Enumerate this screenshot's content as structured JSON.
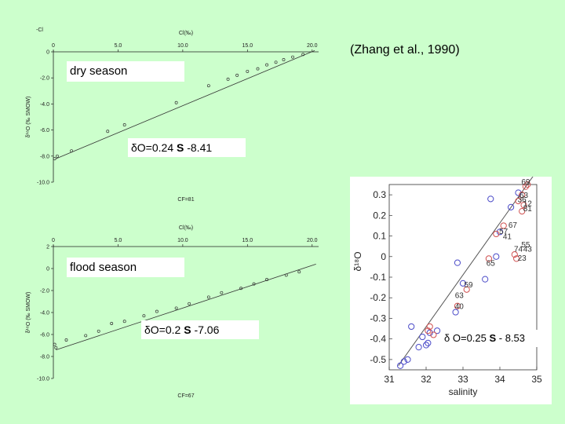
{
  "citation": "(Zhang et al., 1990)",
  "chart_data": [
    {
      "type": "scatter",
      "panel": "dry",
      "title": "",
      "label": "dry season",
      "equation": {
        "delta": "δ",
        "pre": "O=0.24 ",
        "var": "S",
        "post": " -8.41"
      },
      "top_axis_title": "Cl(‰)",
      "corner_label": "-Cl",
      "ylabel": "δ¹⁸O (‰ SMOW)",
      "bottom_note": "CF=81",
      "xticks": [
        "0",
        "5.0",
        "10.0",
        "15.0",
        "20.0"
      ],
      "yticks": [
        "0",
        "-2.0",
        "-4.0",
        "-6.0",
        "-8.0",
        "-10.0"
      ],
      "xlim": [
        0,
        20.5
      ],
      "ylim": [
        -10.0,
        0
      ],
      "points": [
        {
          "x": 0.1,
          "y": -8.2
        },
        {
          "x": 0.3,
          "y": -8.0
        },
        {
          "x": 1.4,
          "y": -7.6
        },
        {
          "x": 4.2,
          "y": -6.1
        },
        {
          "x": 5.5,
          "y": -5.6
        },
        {
          "x": 9.5,
          "y": -3.9
        },
        {
          "x": 12.0,
          "y": -2.6
        },
        {
          "x": 13.5,
          "y": -2.1
        },
        {
          "x": 14.2,
          "y": -1.8
        },
        {
          "x": 15.0,
          "y": -1.5
        },
        {
          "x": 15.8,
          "y": -1.3
        },
        {
          "x": 16.5,
          "y": -1.0
        },
        {
          "x": 17.2,
          "y": -0.8
        },
        {
          "x": 17.8,
          "y": -0.6
        },
        {
          "x": 18.5,
          "y": -0.4
        },
        {
          "x": 19.3,
          "y": -0.2
        }
      ],
      "fit": {
        "x": [
          0.2,
          20.2
        ],
        "y": [
          -8.2,
          0.1
        ]
      }
    },
    {
      "type": "scatter",
      "panel": "flood",
      "title": "",
      "label": "flood season",
      "equation": {
        "delta": "δ",
        "pre": "O=0.2 ",
        "var": "S",
        "post": " -7.06"
      },
      "top_axis_title": "Cl(‰)",
      "corner_label": "",
      "ylabel": "δ¹⁸O (‰ SMOW)",
      "bottom_note": "CF=67",
      "xticks": [
        "0",
        "5.0",
        "10.0",
        "15.0",
        "20.0"
      ],
      "yticks": [
        "2",
        "0",
        "-2.0",
        "-4.0",
        "-6.0",
        "-8.0",
        "-10.0"
      ],
      "xlim": [
        0,
        20.5
      ],
      "ylim": [
        -10.0,
        2.0
      ],
      "points": [
        {
          "x": 0.1,
          "y": -6.9
        },
        {
          "x": 0.2,
          "y": -7.2
        },
        {
          "x": 1.0,
          "y": -6.5
        },
        {
          "x": 2.5,
          "y": -6.1
        },
        {
          "x": 3.5,
          "y": -5.7
        },
        {
          "x": 4.5,
          "y": -5.0
        },
        {
          "x": 5.5,
          "y": -4.8
        },
        {
          "x": 7.0,
          "y": -4.3
        },
        {
          "x": 8.0,
          "y": -3.9
        },
        {
          "x": 9.5,
          "y": -3.6
        },
        {
          "x": 10.5,
          "y": -3.2
        },
        {
          "x": 12.0,
          "y": -2.6
        },
        {
          "x": 13.0,
          "y": -2.2
        },
        {
          "x": 14.5,
          "y": -1.8
        },
        {
          "x": 15.5,
          "y": -1.4
        },
        {
          "x": 16.5,
          "y": -1.0
        },
        {
          "x": 18.0,
          "y": -0.6
        },
        {
          "x": 19.0,
          "y": -0.3
        }
      ],
      "fit": {
        "x": [
          0.2,
          20.3
        ],
        "y": [
          -7.4,
          0.4
        ]
      }
    },
    {
      "type": "scatter",
      "panel": "right",
      "title": "",
      "xlabel": "salinity",
      "ylabel": "δ¹⁸O",
      "equation": {
        "delta": "δ",
        "pre": " O=0.25 ",
        "var": "S",
        "post": " - 8.53"
      },
      "xticks": [
        "31",
        "32",
        "33",
        "34",
        "35"
      ],
      "yticks": [
        "0.3",
        "0.2",
        "0.1",
        "0",
        "-0.1",
        "-0.2",
        "-0.3",
        "-0.4",
        "-0.5"
      ],
      "xlim": [
        31,
        35
      ],
      "ylim": [
        -0.55,
        0.35
      ],
      "grid": false,
      "fit": {
        "x": [
          31.25,
          34.9
        ],
        "y": [
          -0.53,
          0.39
        ]
      },
      "series": [
        {
          "color": "#4a4ac8",
          "points": [
            {
              "x": 31.3,
              "y": -0.53
            },
            {
              "x": 31.4,
              "y": -0.51
            },
            {
              "x": 31.5,
              "y": -0.5
            },
            {
              "x": 31.6,
              "y": -0.34
            },
            {
              "x": 31.8,
              "y": -0.44
            },
            {
              "x": 31.9,
              "y": -0.39
            },
            {
              "x": 32.0,
              "y": -0.43
            },
            {
              "x": 32.05,
              "y": -0.42
            },
            {
              "x": 32.1,
              "y": -0.37
            },
            {
              "x": 32.3,
              "y": -0.36
            },
            {
              "x": 32.8,
              "y": -0.27
            },
            {
              "x": 32.85,
              "y": -0.03
            },
            {
              "x": 33.0,
              "y": -0.13
            },
            {
              "x": 33.6,
              "y": -0.11
            },
            {
              "x": 33.75,
              "y": 0.28
            },
            {
              "x": 33.9,
              "y": 0.0
            },
            {
              "x": 34.0,
              "y": 0.12
            },
            {
              "x": 34.3,
              "y": 0.24
            },
            {
              "x": 34.5,
              "y": 0.31
            }
          ]
        },
        {
          "color": "#d05050",
          "points": [
            {
              "x": 32.05,
              "y": -0.36
            },
            {
              "x": 32.1,
              "y": -0.34
            },
            {
              "x": 32.2,
              "y": -0.38
            },
            {
              "x": 32.85,
              "y": -0.24
            },
            {
              "x": 33.1,
              "y": -0.16
            },
            {
              "x": 33.7,
              "y": -0.01
            },
            {
              "x": 33.9,
              "y": 0.11
            },
            {
              "x": 34.1,
              "y": 0.15
            },
            {
              "x": 34.4,
              "y": 0.01
            },
            {
              "x": 34.45,
              "y": -0.01
            },
            {
              "x": 34.5,
              "y": 0.27
            },
            {
              "x": 34.6,
              "y": 0.22
            },
            {
              "x": 34.65,
              "y": 0.25
            },
            {
              "x": 34.7,
              "y": 0.34
            },
            {
              "x": 34.75,
              "y": 0.35
            },
            {
              "x": 34.6,
              "y": 0.3
            }
          ]
        }
      ],
      "annotations": [
        {
          "text": "69",
          "x": 34.7,
          "y": 0.365
        },
        {
          "text": "63",
          "x": 34.65,
          "y": 0.3
        },
        {
          "text": "36",
          "x": 34.6,
          "y": 0.28
        },
        {
          "text": "12",
          "x": 34.75,
          "y": 0.26
        },
        {
          "text": "81",
          "x": 34.75,
          "y": 0.235
        },
        {
          "text": "67",
          "x": 34.35,
          "y": 0.155
        },
        {
          "text": "57",
          "x": 34.1,
          "y": 0.125
        },
        {
          "text": "41",
          "x": 34.2,
          "y": 0.1
        },
        {
          "text": "55",
          "x": 34.7,
          "y": 0.06
        },
        {
          "text": "74",
          "x": 34.5,
          "y": 0.04
        },
        {
          "text": "43",
          "x": 34.75,
          "y": 0.04
        },
        {
          "text": "23",
          "x": 34.6,
          "y": -0.005
        },
        {
          "text": "65",
          "x": 33.75,
          "y": -0.03
        },
        {
          "text": "59",
          "x": 33.15,
          "y": -0.135
        },
        {
          "text": "63",
          "x": 32.9,
          "y": -0.185
        },
        {
          "text": "40",
          "x": 32.9,
          "y": -0.24
        }
      ]
    }
  ]
}
